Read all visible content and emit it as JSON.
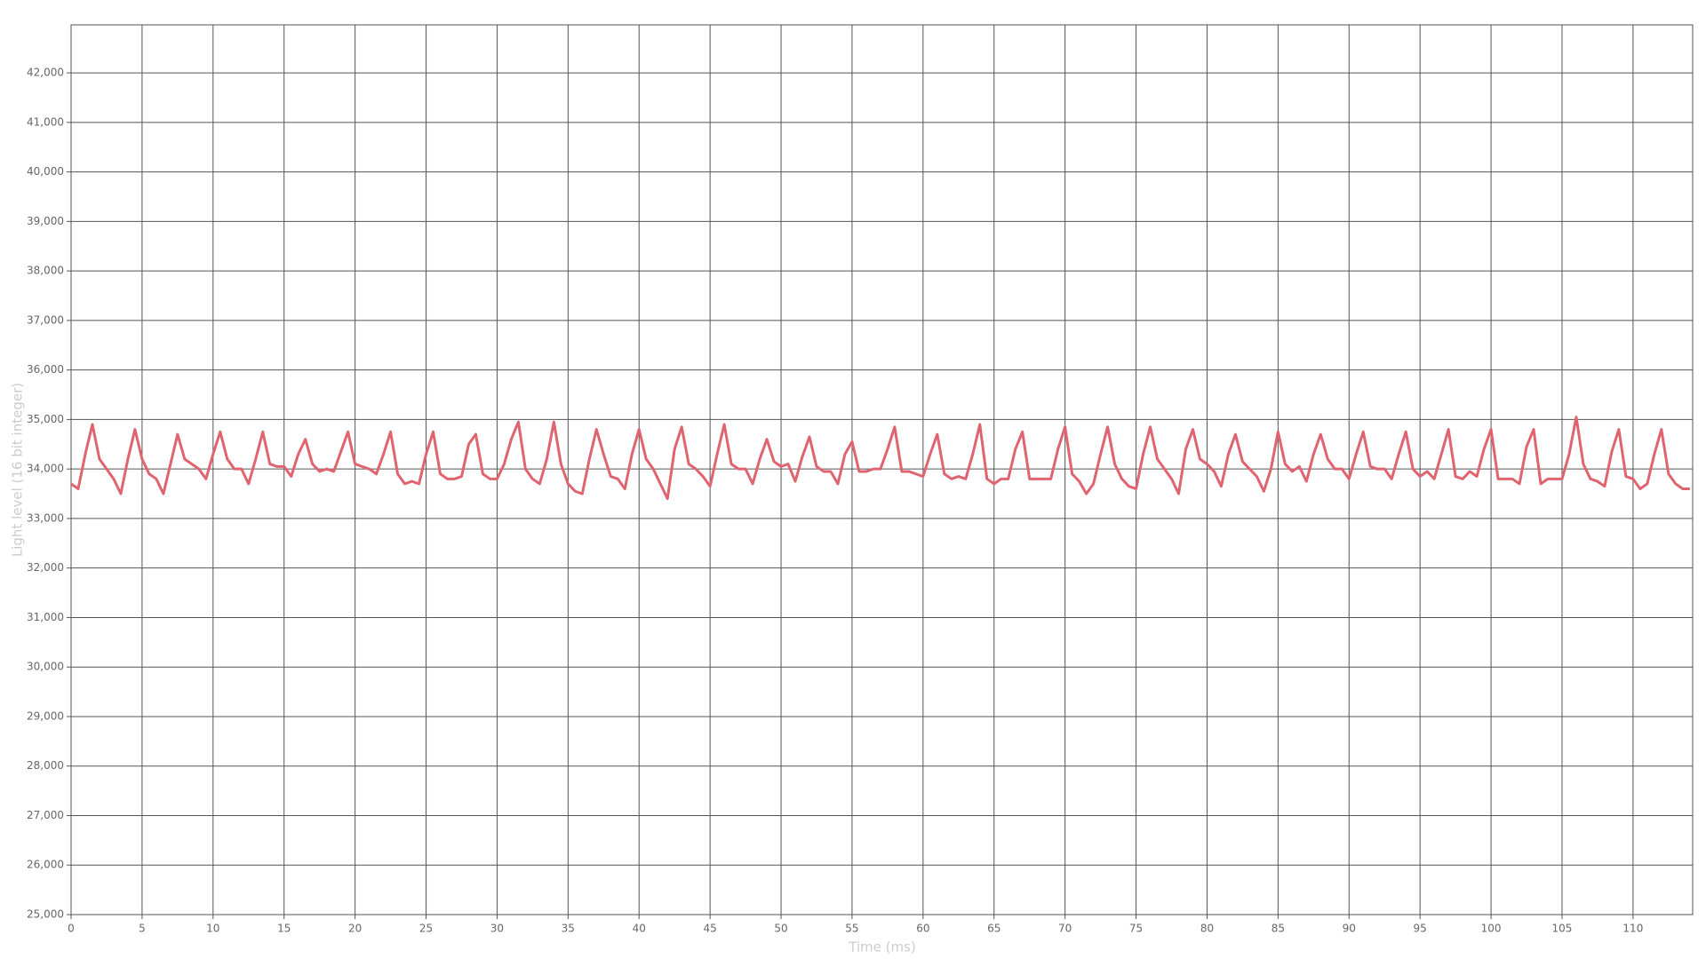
{
  "chart_data": {
    "type": "line",
    "xlabel": "Time (ms)",
    "ylabel": "Light level (16 bit integer)",
    "xlim": [
      0,
      114.2
    ],
    "ylim": [
      25000,
      42970
    ],
    "xticks": [
      0,
      5,
      10,
      15,
      20,
      25,
      30,
      35,
      40,
      45,
      50,
      55,
      60,
      65,
      70,
      75,
      80,
      85,
      90,
      95,
      100,
      105,
      110
    ],
    "yticks": [
      {
        "value": 25000,
        "label": "25,000"
      },
      {
        "value": 26000,
        "label": "26,000"
      },
      {
        "value": 27000,
        "label": "27,000"
      },
      {
        "value": 28000,
        "label": "28,000"
      },
      {
        "value": 29000,
        "label": "29,000"
      },
      {
        "value": 30000,
        "label": "30,000"
      },
      {
        "value": 31000,
        "label": "31,000"
      },
      {
        "value": 32000,
        "label": "32,000"
      },
      {
        "value": 33000,
        "label": "33,000"
      },
      {
        "value": 34000,
        "label": "34,000"
      },
      {
        "value": 35000,
        "label": "35,000"
      },
      {
        "value": 36000,
        "label": "36,000"
      },
      {
        "value": 37000,
        "label": "37,000"
      },
      {
        "value": 38000,
        "label": "38,000"
      },
      {
        "value": 39000,
        "label": "39,000"
      },
      {
        "value": 40000,
        "label": "40,000"
      },
      {
        "value": 41000,
        "label": "41,000"
      },
      {
        "value": 42000,
        "label": "42,000"
      }
    ],
    "grid": true,
    "x": [
      0,
      0.5,
      1,
      1.5,
      2,
      2.5,
      3,
      3.5,
      4,
      4.5,
      5,
      5.5,
      6,
      6.5,
      7,
      7.5,
      8,
      8.5,
      9,
      9.5,
      10,
      10.5,
      11,
      11.5,
      12,
      12.5,
      13,
      13.5,
      14,
      14.5,
      15,
      15.5,
      16,
      16.5,
      17,
      17.5,
      18,
      18.5,
      19,
      19.5,
      20,
      20.5,
      21,
      21.5,
      22,
      22.5,
      23,
      23.5,
      24,
      24.5,
      25,
      25.5,
      26,
      26.5,
      27,
      27.5,
      28,
      28.5,
      29,
      29.5,
      30,
      30.5,
      31,
      31.5,
      32,
      32.5,
      33,
      33.5,
      34,
      34.5,
      35,
      35.5,
      36,
      36.5,
      37,
      37.5,
      38,
      38.5,
      39,
      39.5,
      40,
      40.5,
      41,
      41.5,
      42,
      42.5,
      43,
      43.5,
      44,
      44.5,
      45,
      45.5,
      46,
      46.5,
      47,
      47.5,
      48,
      48.5,
      49,
      49.5,
      50,
      50.5,
      51,
      51.5,
      52,
      52.5,
      53,
      53.5,
      54,
      54.5,
      55,
      55.5,
      56,
      56.5,
      57,
      57.5,
      58,
      58.5,
      59,
      59.5,
      60,
      60.5,
      61,
      61.5,
      62,
      62.5,
      63,
      63.5,
      64,
      64.5,
      65,
      65.5,
      66,
      66.5,
      67,
      67.5,
      68,
      68.5,
      69,
      69.5,
      70,
      70.5,
      71,
      71.5,
      72,
      72.5,
      73,
      73.5,
      74,
      74.5,
      75,
      75.5,
      76,
      76.5,
      77,
      77.5,
      78,
      78.5,
      79,
      79.5,
      80,
      80.5,
      81,
      81.5,
      82,
      82.5,
      83,
      83.5,
      84,
      84.5,
      85,
      85.5,
      86,
      86.5,
      87,
      87.5,
      88,
      88.5,
      89,
      89.5,
      90,
      90.5,
      91,
      91.5,
      92,
      92.5,
      93,
      93.5,
      94,
      94.5,
      95,
      95.5,
      96,
      96.5,
      97,
      97.5,
      98,
      98.5,
      99,
      99.5,
      100,
      100.5,
      101,
      101.5,
      102,
      102.5,
      103,
      103.5,
      104,
      104.5,
      105,
      105.5,
      106,
      106.5,
      107,
      107.5,
      108,
      108.5,
      109,
      109.5,
      110,
      110.5,
      111,
      111.5,
      112,
      112.5,
      113,
      113.5,
      114
    ],
    "series": [
      {
        "color": "#e0646f",
        "values": [
          33700,
          33600,
          34300,
          34900,
          34200,
          34000,
          33800,
          33500,
          34200,
          34800,
          34200,
          33900,
          33800,
          33500,
          34100,
          34700,
          34200,
          34100,
          34000,
          33800,
          34300,
          34750,
          34200,
          34000,
          34000,
          33700,
          34200,
          34750,
          34100,
          34050,
          34050,
          33850,
          34300,
          34600,
          34100,
          33950,
          34000,
          33950,
          34350,
          34750,
          34100,
          34050,
          34000,
          33900,
          34300,
          34750,
          33900,
          33700,
          33750,
          33700,
          34300,
          34750,
          33900,
          33800,
          33800,
          33850,
          34500,
          34700,
          33900,
          33800,
          33800,
          34100,
          34600,
          34950,
          34000,
          33800,
          33700,
          34200,
          34950,
          34100,
          33700,
          33550,
          33500,
          34200,
          34800,
          34300,
          33850,
          33800,
          33600,
          34300,
          34800,
          34200,
          34000,
          33700,
          33400,
          34400,
          34850,
          34100,
          34000,
          33850,
          33650,
          34300,
          34900,
          34100,
          34000,
          34000,
          33700,
          34200,
          34600,
          34150,
          34050,
          34100,
          33750,
          34250,
          34650,
          34050,
          33950,
          33950,
          33700,
          34300,
          34550,
          33950,
          33950,
          34000,
          34000,
          34400,
          34850,
          33950,
          33950,
          33900,
          33850,
          34300,
          34700,
          33900,
          33800,
          33850,
          33800,
          34300,
          34900,
          33800,
          33700,
          33800,
          33800,
          34400,
          34750,
          33800,
          33800,
          33800,
          33800,
          34400,
          34850,
          33900,
          33750,
          33500,
          33700,
          34300,
          34850,
          34100,
          33800,
          33650,
          33600,
          34300,
          34850,
          34200,
          34000,
          33800,
          33500,
          34400,
          34800,
          34200,
          34100,
          33950,
          33650,
          34300,
          34700,
          34150,
          34000,
          33850,
          33550,
          34000,
          34750,
          34100,
          33950,
          34050,
          33750,
          34300,
          34700,
          34200,
          34000,
          34000,
          33800,
          34300,
          34750,
          34050,
          34000,
          34000,
          33800,
          34300,
          34750,
          34000,
          33850,
          33950,
          33800,
          34300,
          34800,
          33850,
          33800,
          33950,
          33850,
          34400,
          34800,
          33800,
          33800,
          33800,
          33700,
          34450,
          34800,
          33700,
          33800,
          33800,
          33800,
          34300,
          35050,
          34100,
          33800,
          33750,
          33650,
          34350,
          34800,
          33850,
          33800,
          33600,
          33700,
          34300,
          34800,
          33900,
          33700,
          33600,
          33600
        ]
      }
    ]
  }
}
